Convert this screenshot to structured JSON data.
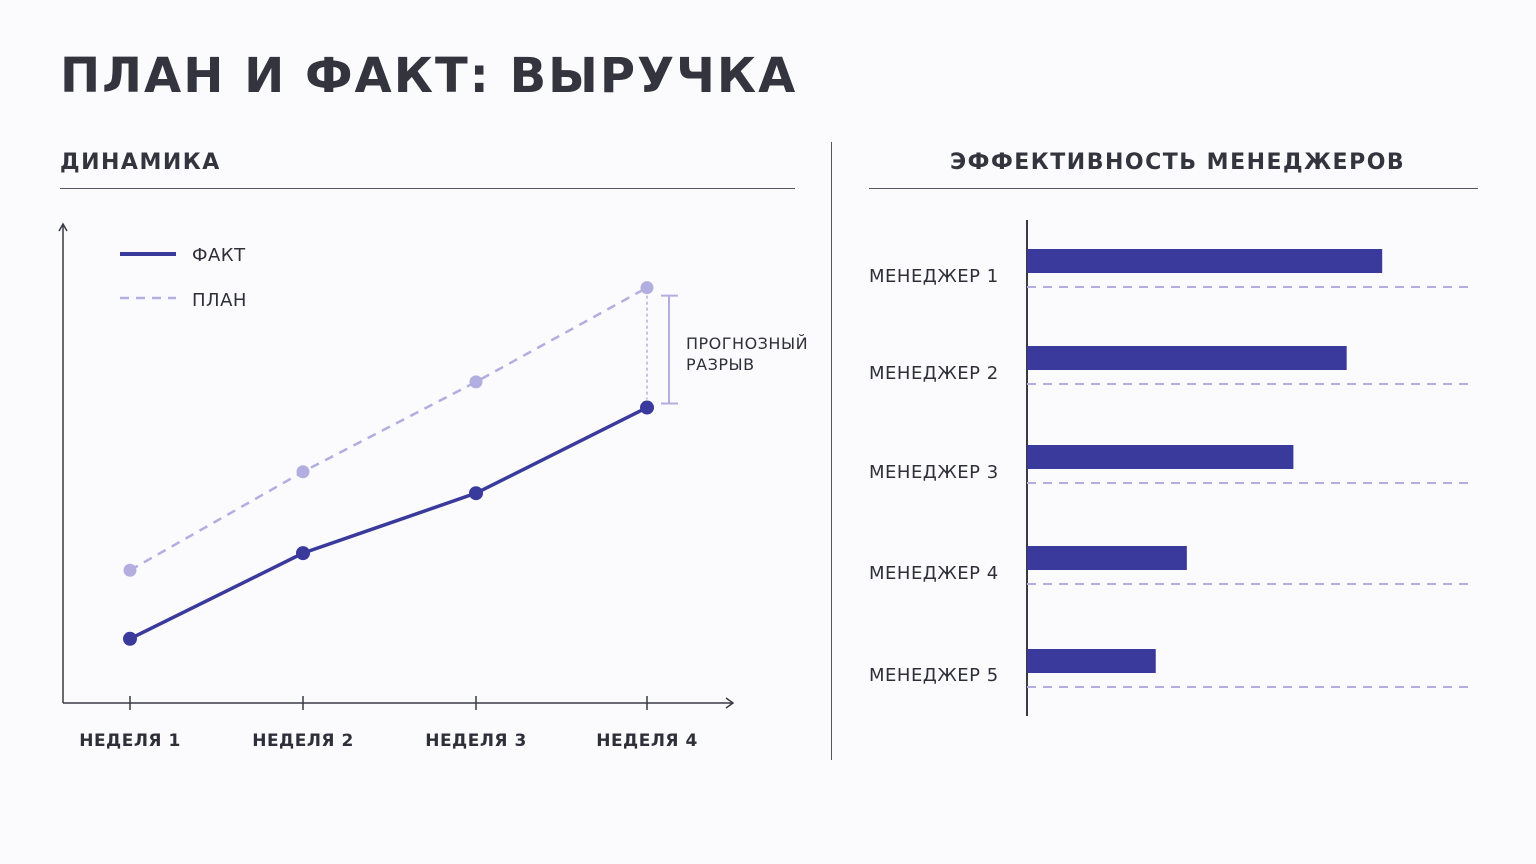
{
  "page": {
    "title": "ПЛАН И ФАКТ: ВЫРУЧКА"
  },
  "colors": {
    "fact": "#3a3a9c",
    "plan": "#b3aee0",
    "axis": "#3a3a44",
    "text": "#2f2f3a"
  },
  "chart_data": [
    {
      "type": "line",
      "title": "ДИНАМИКА",
      "categories": [
        "НЕДЕЛЯ 1",
        "НЕДЕЛЯ 2",
        "НЕДЕЛЯ 3",
        "НЕДЕЛЯ 4"
      ],
      "series": [
        {
          "name": "ФАКТ",
          "style": "solid",
          "values": [
            15,
            35,
            49,
            69
          ]
        },
        {
          "name": "ПЛАН",
          "style": "dashed",
          "values": [
            31,
            54,
            75,
            97
          ]
        }
      ],
      "ylim": [
        0,
        110
      ],
      "legend": "top-left",
      "annotation": "ПРОГНОЗНЫЙ РАЗРЫВ"
    },
    {
      "type": "bar",
      "orientation": "horizontal",
      "title": "ЭФФЕКТИВНОСТЬ МЕНЕДЖЕРОВ",
      "categories": [
        "МЕНЕДЖЕР 1",
        "МЕНЕДЖЕР 2",
        "МЕНЕДЖЕР 3",
        "МЕНЕДЖЕР 4",
        "МЕНЕДЖЕР 5"
      ],
      "values": [
        80,
        72,
        60,
        36,
        29
      ],
      "plan_values": [
        100,
        100,
        100,
        100,
        100
      ],
      "xlim": [
        0,
        100
      ]
    }
  ]
}
